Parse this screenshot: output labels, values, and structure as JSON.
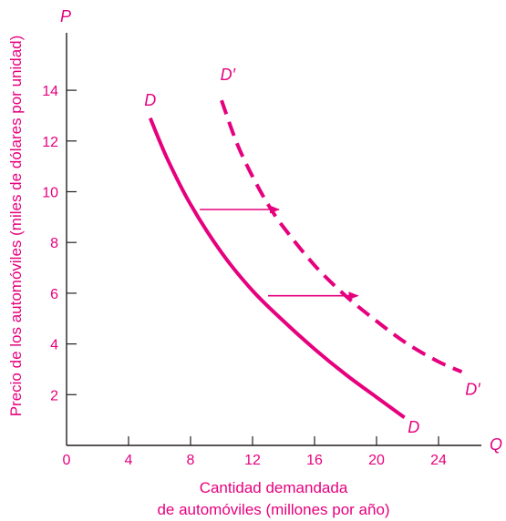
{
  "colors": {
    "accent": "#e6007e",
    "axis": "#231f20"
  },
  "chart_data": {
    "type": "line",
    "x_axis_symbol": "Q",
    "y_axis_symbol": "P",
    "xlabel_lines": [
      "Cantidad demandada",
      "de automóviles (millones por año)"
    ],
    "ylabel": "Precio de los automóviles (miles de dólares por unidad)",
    "xlim": [
      0,
      26
    ],
    "ylim": [
      0,
      16
    ],
    "x_ticks": [
      0,
      4,
      8,
      12,
      16,
      20,
      24
    ],
    "y_ticks": [
      2,
      4,
      6,
      8,
      10,
      12,
      14
    ],
    "x_tick_labels": [
      "0",
      "4",
      "8",
      "12",
      "16",
      "20",
      "24"
    ],
    "y_tick_labels": [
      "2",
      "4",
      "6",
      "8",
      "10",
      "12",
      "14"
    ],
    "grid": false,
    "series": [
      {
        "name": "D",
        "style": "solid",
        "x": [
          5.4,
          6.5,
          8,
          10,
          12,
          14,
          16,
          18,
          20,
          21.8
        ],
        "y": [
          12.9,
          11.3,
          9.5,
          7.6,
          6.1,
          4.9,
          3.8,
          2.8,
          1.9,
          1.1
        ]
      },
      {
        "name": "D′",
        "style": "dashed",
        "x": [
          10,
          11,
          12,
          13,
          14,
          16,
          18,
          20,
          22,
          24,
          25.5
        ],
        "y": [
          13.6,
          11.9,
          10.6,
          9.5,
          8.6,
          7.1,
          5.9,
          4.9,
          4.0,
          3.3,
          2.9
        ]
      }
    ],
    "shift_arrows": [
      {
        "y": 9.3,
        "x_from": 8.6,
        "x_to": 13.7
      },
      {
        "y": 5.9,
        "x_from": 13.0,
        "x_to": 18.8
      }
    ],
    "curve_labels": [
      {
        "text": "D",
        "x": 5.4,
        "y": 13.4
      },
      {
        "text": "D′",
        "x": 10.4,
        "y": 14.4
      },
      {
        "text": "D",
        "x": 22.4,
        "y": 0.5
      },
      {
        "text": "D′",
        "x": 26.2,
        "y": 2.0
      }
    ]
  }
}
